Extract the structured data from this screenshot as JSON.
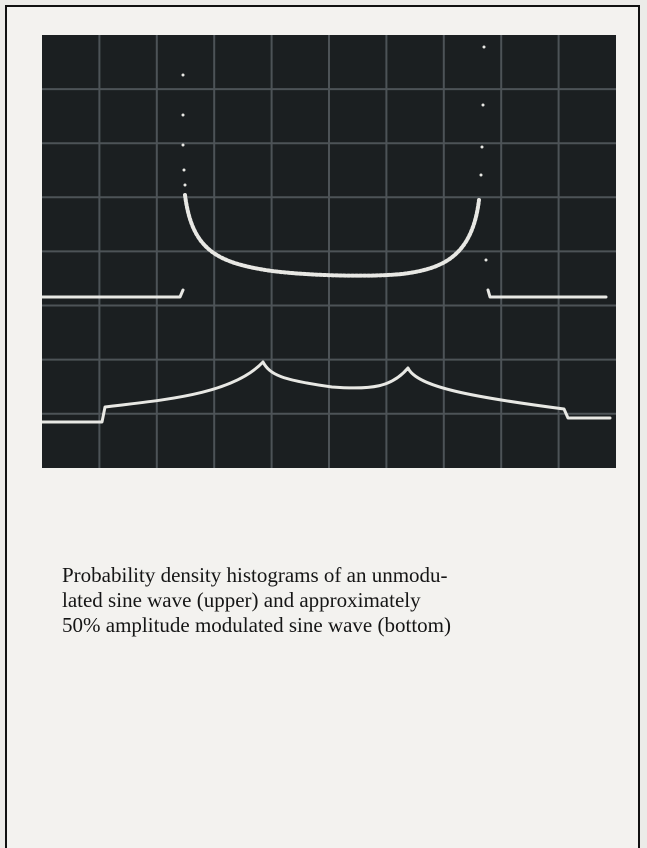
{
  "figure": {
    "caption_lines": [
      "Probability density histograms of an unmodu-",
      "lated sine wave (upper) and approximately",
      "50% amplitude modulated sine wave (bottom)"
    ]
  }
}
